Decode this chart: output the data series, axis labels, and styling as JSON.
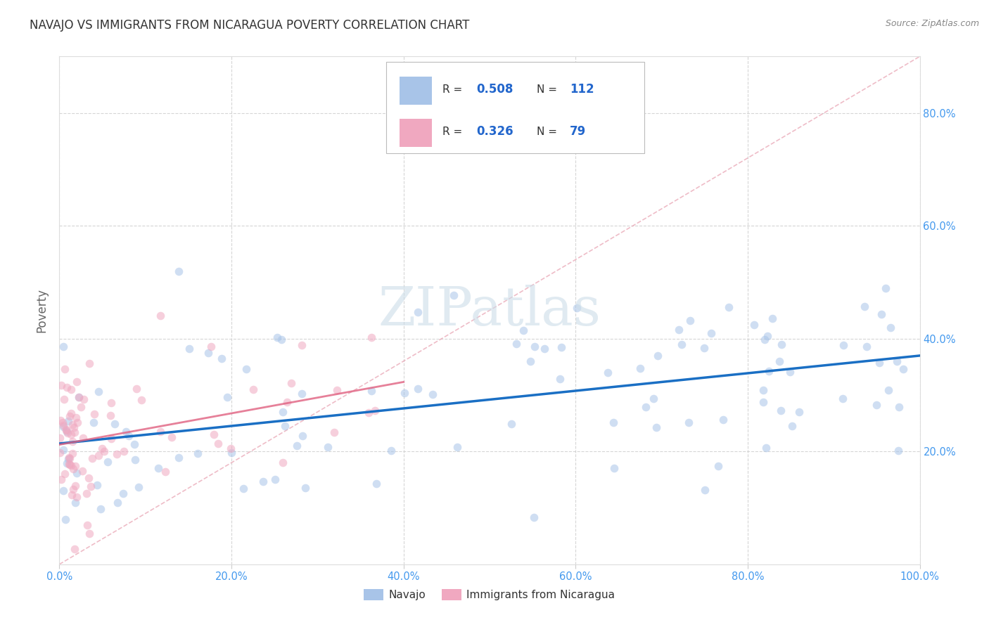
{
  "title": "NAVAJO VS IMMIGRANTS FROM NICARAGUA POVERTY CORRELATION CHART",
  "source": "Source: ZipAtlas.com",
  "ylabel": "Poverty",
  "watermark": "ZIPatlas",
  "navajo_R": 0.508,
  "navajo_N": 112,
  "nicaragua_R": 0.326,
  "nicaragua_N": 79,
  "navajo_color": "#a8c4e8",
  "nicaragua_color": "#f0a8c0",
  "navajo_line_color": "#1a6fc4",
  "nicaragua_line_color": "#e06080",
  "diag_line_color": "#e8a0b0",
  "background_color": "#ffffff",
  "grid_color": "#cccccc",
  "title_color": "#333333",
  "axis_label_color": "#666666",
  "tick_color": "#4499ee",
  "legend_text_color": "#2266cc",
  "legend_label_color": "#333333",
  "xlim": [
    0.0,
    1.0
  ],
  "ylim": [
    0.0,
    0.9
  ],
  "xticks": [
    0.0,
    0.2,
    0.4,
    0.6,
    0.8,
    1.0
  ],
  "yticks": [
    0.2,
    0.4,
    0.6,
    0.8
  ],
  "xticklabels": [
    "0.0%",
    "20.0%",
    "40.0%",
    "60.0%",
    "80.0%",
    "100.0%"
  ],
  "yticklabels_right": [
    "20.0%",
    "40.0%",
    "60.0%",
    "80.0%"
  ],
  "legend_navajo_label": "Navajo",
  "legend_nicaragua_label": "Immigrants from Nicaragua",
  "marker_size": 70,
  "marker_alpha": 0.55,
  "line_alpha": 1.0,
  "dpi": 100,
  "figsize": [
    14.06,
    8.92
  ]
}
